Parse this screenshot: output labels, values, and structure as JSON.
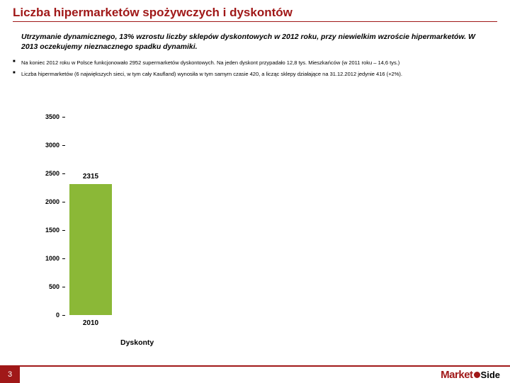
{
  "title": "Liczba hipermarketów spożywczych i dyskontów",
  "subtitle": "Utrzymanie dynamicznego, 13% wzrostu liczby sklepów dyskontowych w 2012 roku, przy niewielkim wzroście hipermarketów. W 2013 oczekujemy nieznacznego spadku dynamiki.",
  "bullets": [
    "Na koniec 2012 roku w Polsce funkcjonowało 2952 supermarketów dyskontowych. Na jeden dyskont przypadało 12,8 tys. Mieszkańców (w 2011 roku – 14,6 tys.)",
    "Liczba hipermarketów (6 największych sieci, w tym cały Kaufland) wynosiła w tym samym czasie 420, a licząc sklepy działające na 31.12.2012 jedynie 416 (+2%)."
  ],
  "chart": {
    "type": "bar",
    "ylim": [
      0,
      3500
    ],
    "ytick_step": 500,
    "yticks": [
      0,
      500,
      1000,
      1500,
      2000,
      2500,
      3000,
      3500
    ],
    "categories": [
      "2010"
    ],
    "values": [
      2315
    ],
    "bar_color": "#8bb837",
    "x_axis_title": "Dyskonty",
    "label_fontsize": 10,
    "tick_fontsize": 9,
    "background_color": "#ffffff"
  },
  "footer": {
    "page_number": "3",
    "logo_main": "Market",
    "logo_sub": "Side"
  },
  "colors": {
    "brand": "#a01818",
    "bar": "#8bb837",
    "text": "#000000"
  }
}
